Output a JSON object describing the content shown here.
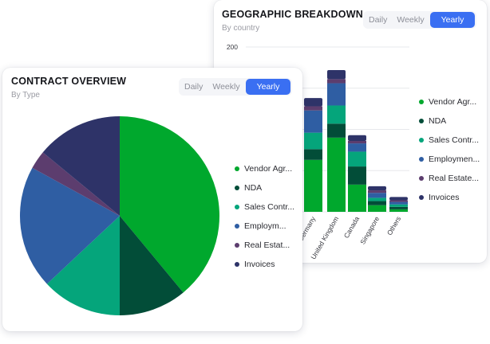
{
  "geo_card": {
    "title": "GEOGRAPHIC BREAKDOWN",
    "subtitle": "By country",
    "tabs": [
      "Daily",
      "Weekly",
      "Yearly"
    ],
    "active_tab": "Yearly"
  },
  "contract_card": {
    "title": "CONTRACT OVERVIEW",
    "subtitle": "By Type",
    "tabs": [
      "Daily",
      "Weekly",
      "Yearly"
    ],
    "active_tab": "Yearly"
  },
  "colors": {
    "Vendor Agr": "#00a82d",
    "NDA": "#024d38",
    "Sales Contr": "#05a57b",
    "Employment": "#2f5ea3",
    "Real Estate": "#5c3d6e",
    "Invoices": "#2e3368"
  },
  "chart_data": [
    {
      "type": "bar",
      "stacked": true,
      "title": "GEOGRAPHIC BREAKDOWN",
      "subtitle": "By country",
      "categories": [
        "Germany",
        "United Kingdom",
        "Canada",
        "Singapore",
        "Others"
      ],
      "yaxis_ticks": [
        200
      ],
      "ylim": [
        0,
        200
      ],
      "grid": true,
      "legend_position": "right",
      "legend": [
        "Vendor Agr...",
        "NDA",
        "Sales Contr...",
        "Employmen...",
        "Real Estate...",
        "Invoices"
      ],
      "series": [
        {
          "name": "Vendor Agr...",
          "values": [
            63,
            90,
            33,
            8,
            3
          ]
        },
        {
          "name": "NDA",
          "values": [
            13,
            17,
            22,
            5,
            3
          ]
        },
        {
          "name": "Sales Contr...",
          "values": [
            20,
            22,
            18,
            4,
            3
          ]
        },
        {
          "name": "Employmen...",
          "values": [
            27,
            27,
            10,
            6,
            3
          ]
        },
        {
          "name": "Real Estate...",
          "values": [
            5,
            5,
            3,
            3,
            2
          ]
        },
        {
          "name": "Invoices",
          "values": [
            10,
            11,
            7,
            5,
            4
          ]
        }
      ]
    },
    {
      "type": "pie",
      "title": "CONTRACT OVERVIEW",
      "subtitle": "By Type",
      "legend_position": "right",
      "legend": [
        "Vendor Agr...",
        "NDA",
        "Sales Contr...",
        "Employm...",
        "Real Estat...",
        "Invoices"
      ],
      "categories": [
        "Vendor Agr...",
        "NDA",
        "Sales Contr...",
        "Employm...",
        "Real Estat...",
        "Invoices"
      ],
      "values": [
        39,
        11,
        13,
        20,
        3,
        14
      ]
    }
  ]
}
